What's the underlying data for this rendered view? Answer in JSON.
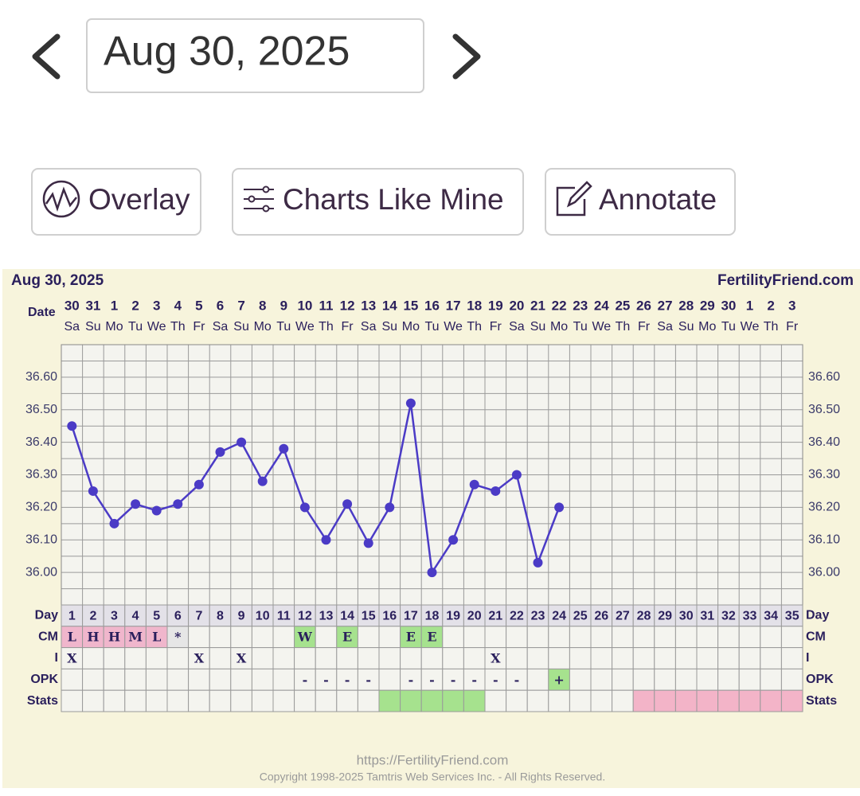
{
  "nav": {
    "date": "Aug 30, 2025"
  },
  "buttons": [
    "Overlay",
    "Charts Like Mine",
    "Annotate"
  ],
  "chart_data": {
    "type": "line",
    "title": "Aug 30, 2025",
    "site": "FertilityFriend.com",
    "date_label": "Date",
    "dates": [
      30,
      31,
      1,
      2,
      3,
      4,
      5,
      6,
      7,
      8,
      9,
      10,
      11,
      12,
      13,
      14,
      15,
      16,
      17,
      18,
      19,
      20,
      21,
      22,
      23,
      24,
      25,
      26,
      27,
      28,
      29,
      30,
      1,
      2,
      3
    ],
    "weekdays": [
      "Sa",
      "Su",
      "Mo",
      "Tu",
      "We",
      "Th",
      "Fr",
      "Sa",
      "Su",
      "Mo",
      "Tu",
      "We",
      "Th",
      "Fr",
      "Sa",
      "Su",
      "Mo",
      "Tu",
      "We",
      "Th",
      "Fr",
      "Sa",
      "Su",
      "Mo",
      "Tu",
      "We",
      "Th",
      "Fr",
      "Sa",
      "Su",
      "Mo",
      "Tu",
      "We",
      "Th",
      "Fr"
    ],
    "categories": [
      1,
      2,
      3,
      4,
      5,
      6,
      7,
      8,
      9,
      10,
      11,
      12,
      13,
      14,
      15,
      16,
      17,
      18,
      19,
      20,
      21,
      22,
      23,
      24,
      25,
      26,
      27,
      28,
      29,
      30,
      31,
      32,
      33,
      34,
      35
    ],
    "values": [
      36.45,
      36.25,
      36.15,
      36.21,
      36.19,
      36.21,
      36.27,
      36.37,
      36.4,
      36.28,
      36.38,
      36.2,
      36.1,
      36.21,
      36.09,
      36.2,
      36.52,
      36.0,
      36.1,
      36.27,
      36.25,
      36.3,
      36.03,
      36.2,
      null,
      null,
      null,
      null,
      null,
      null,
      null,
      null,
      null,
      null,
      null
    ],
    "color": "#4b3bc6",
    "ylim": [
      35.9,
      36.7
    ],
    "yticks": [
      {
        "value": 36.0,
        "label": "36.00"
      },
      {
        "value": 36.1,
        "label": "36.10"
      },
      {
        "value": 36.2,
        "label": "36.20"
      },
      {
        "value": 36.3,
        "label": "36.30"
      },
      {
        "value": 36.4,
        "label": "36.40"
      },
      {
        "value": 36.5,
        "label": "36.50"
      },
      {
        "value": 36.6,
        "label": "36.60"
      }
    ],
    "ygrid": [
      35.95,
      36.05,
      36.15,
      36.25,
      36.35,
      36.45,
      36.55,
      36.65
    ],
    "row_labels": [
      "Day",
      "CM",
      "I",
      "OPK",
      "Stats"
    ],
    "cm": [
      "L",
      "H",
      "H",
      "M",
      "L",
      "*",
      null,
      null,
      null,
      null,
      null,
      "W",
      null,
      "E",
      null,
      null,
      "E",
      "E",
      null,
      null,
      null,
      null,
      null,
      null,
      null,
      null,
      null,
      null,
      null,
      null,
      null,
      null,
      null,
      null,
      null
    ],
    "cm_fill": [
      "#f0b6cc",
      "#f0b6cc",
      "#f0b6cc",
      "#f0b6cc",
      "#f0b6cc",
      "#e6e6e6",
      null,
      null,
      null,
      null,
      null,
      "#a6e28e",
      null,
      "#a6e28e",
      null,
      null,
      "#a6e28e",
      "#a6e28e",
      null,
      null,
      null,
      null,
      null,
      null,
      null,
      null,
      null,
      null,
      null,
      null,
      null,
      null,
      null,
      null,
      null
    ],
    "intercourse": [
      "X",
      null,
      null,
      null,
      null,
      null,
      "X",
      null,
      "X",
      null,
      null,
      null,
      null,
      null,
      null,
      null,
      null,
      null,
      null,
      null,
      "X",
      null,
      null,
      null,
      null,
      null,
      null,
      null,
      null,
      null,
      null,
      null,
      null,
      null,
      null
    ],
    "opk": [
      null,
      null,
      null,
      null,
      null,
      null,
      null,
      null,
      null,
      null,
      null,
      "-",
      "-",
      "-",
      "-",
      null,
      "-",
      "-",
      "-",
      "-",
      "-",
      "-",
      null,
      "+",
      null,
      null,
      null,
      null,
      null,
      null,
      null,
      null,
      null,
      null,
      null
    ],
    "opk_fill": [
      null,
      null,
      null,
      null,
      null,
      null,
      null,
      null,
      null,
      null,
      null,
      null,
      null,
      null,
      null,
      null,
      null,
      null,
      null,
      null,
      null,
      null,
      null,
      "#a6e28e",
      null,
      null,
      null,
      null,
      null,
      null,
      null,
      null,
      null,
      null,
      null
    ],
    "stats": [
      null,
      null,
      null,
      null,
      null,
      null,
      null,
      null,
      null,
      null,
      null,
      null,
      null,
      null,
      null,
      "#a6e28e",
      "#a6e28e",
      "#a6e28e",
      "#a6e28e",
      "#a6e28e",
      null,
      null,
      null,
      null,
      null,
      null,
      null,
      "#f3b4c8",
      "#f3b4c8",
      "#f3b4c8",
      "#f3b4c8",
      "#f3b4c8",
      "#f3b4c8",
      "#f3b4c8",
      "#f3b4c8"
    ]
  },
  "footer": {
    "url": "https://FertilityFriend.com",
    "copyright": "Copyright 1998-2025 Tamtris Web Services Inc. - All Rights Reserved."
  }
}
